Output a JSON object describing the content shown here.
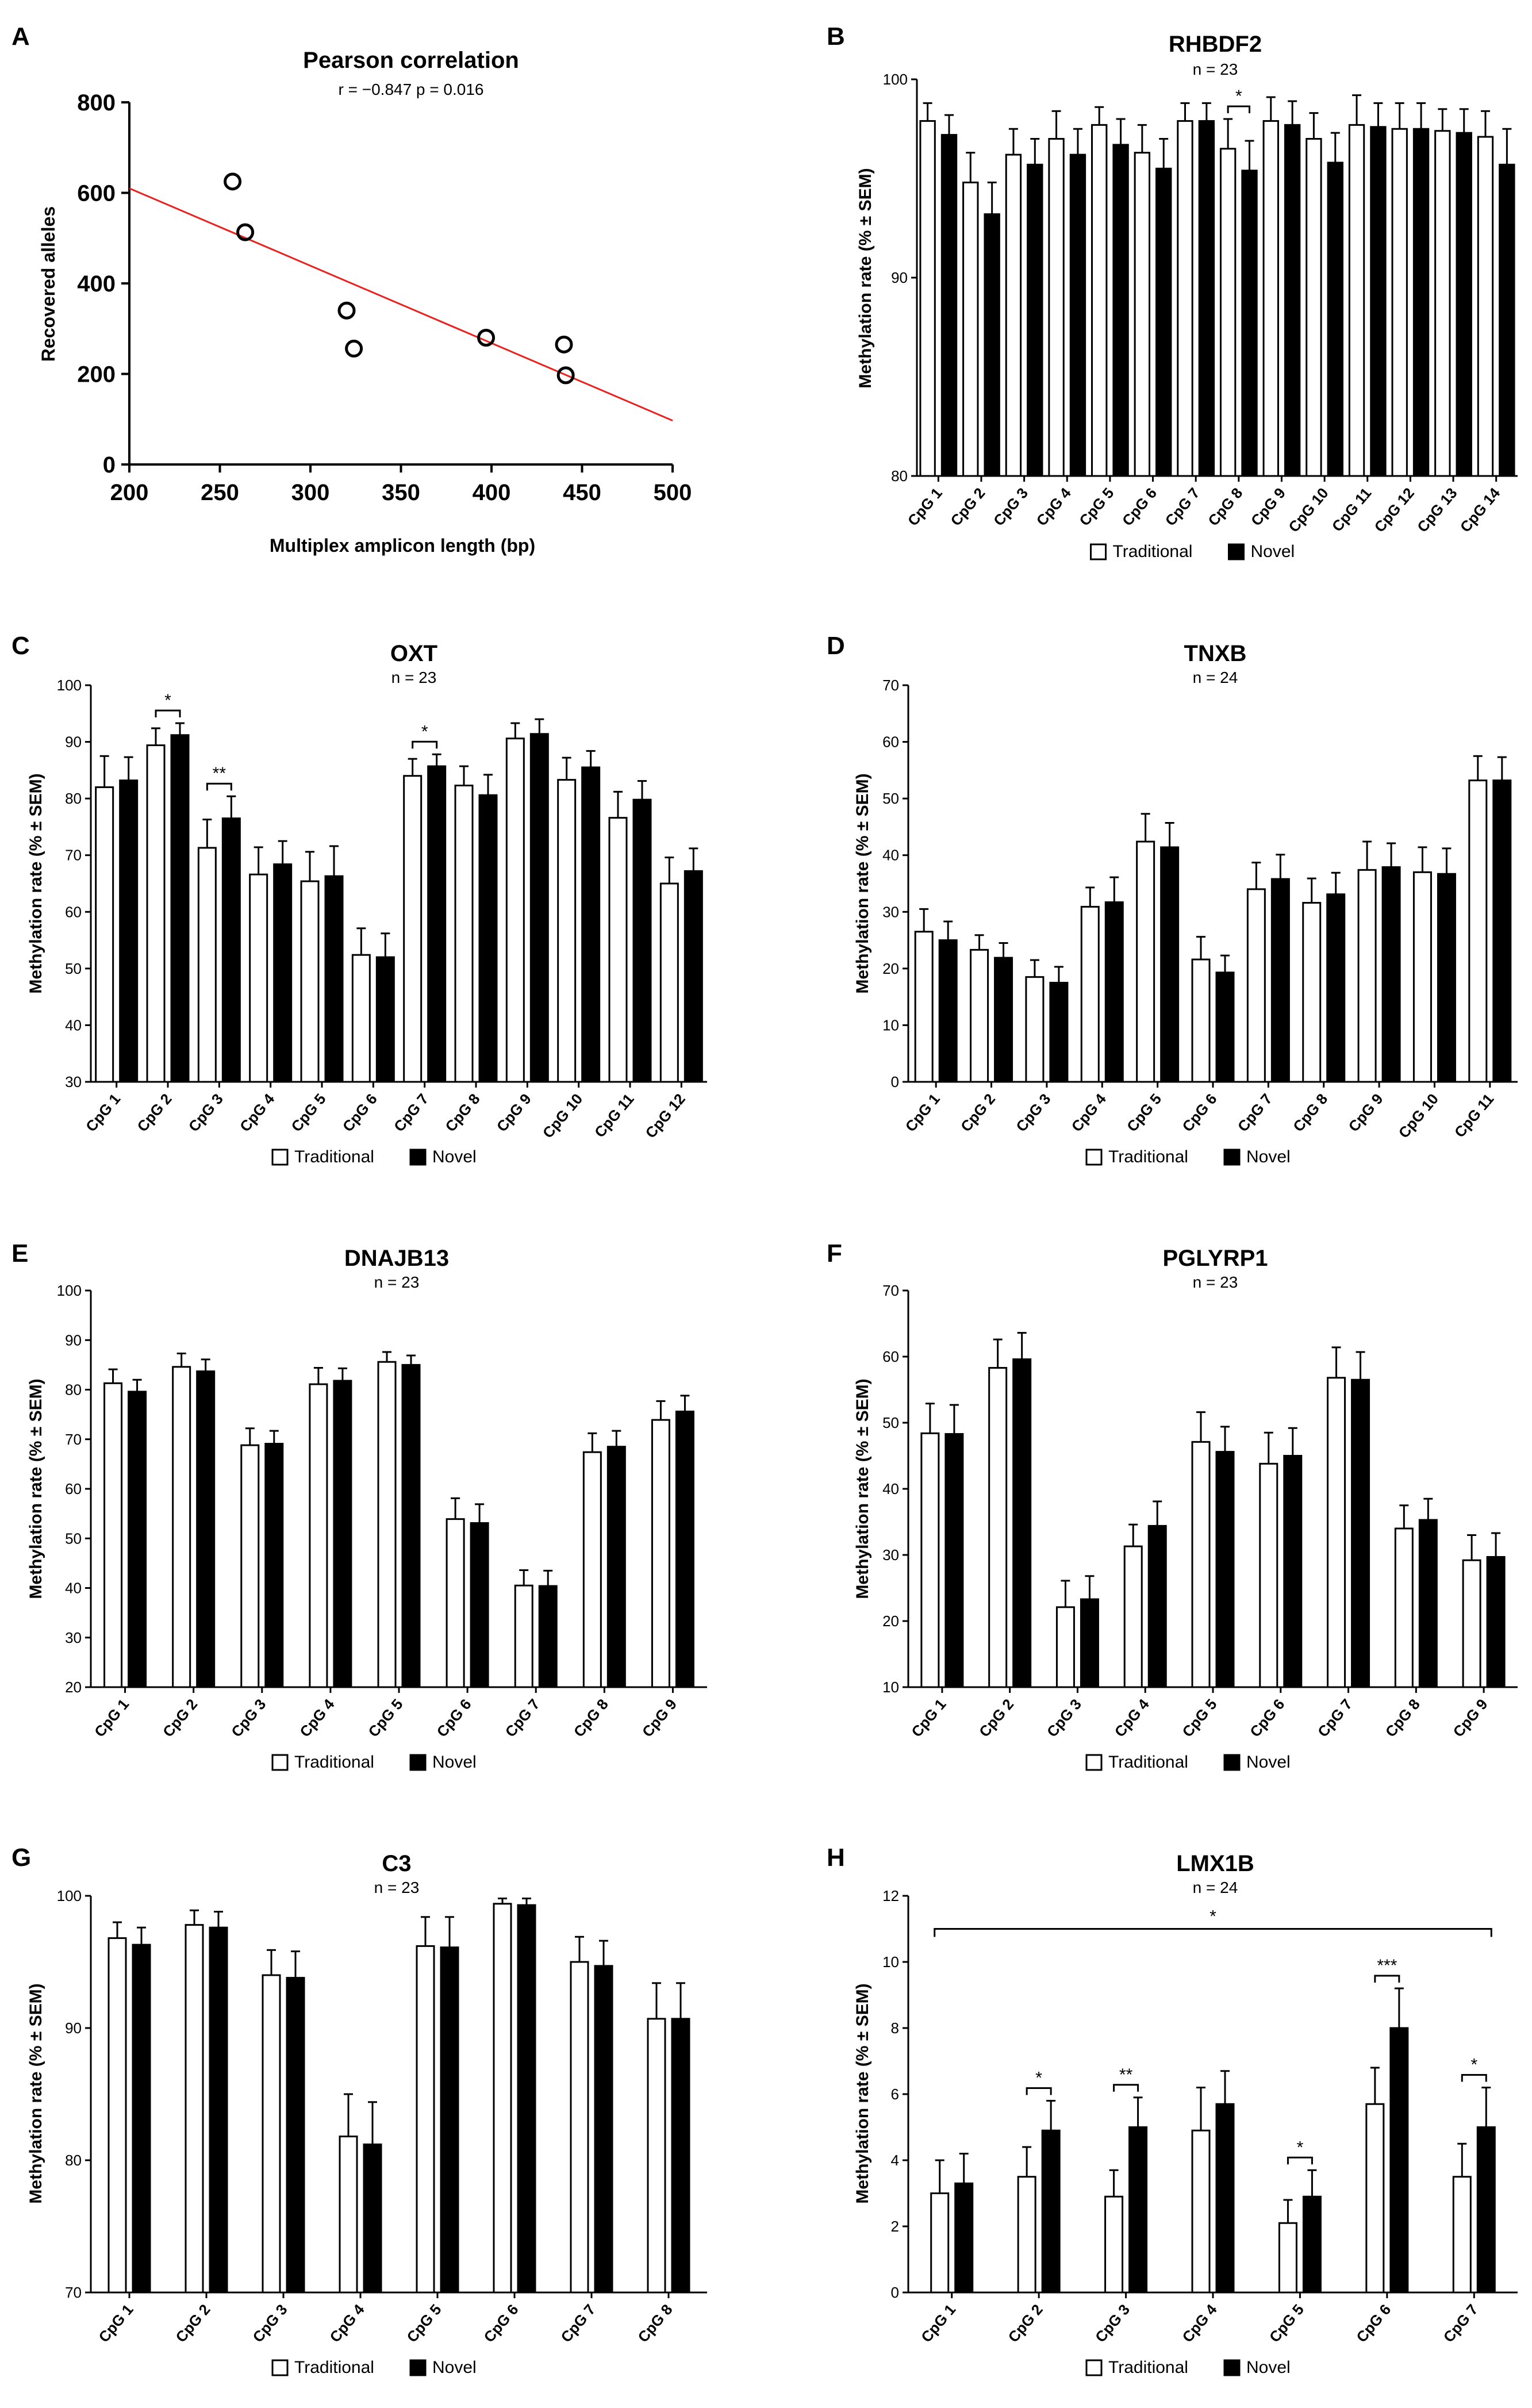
{
  "chart_data": [
    {
      "panel": "A",
      "type": "scatter",
      "title": "Pearson correlation",
      "stats": "r = −0.847  p = 0.016",
      "xlabel": "Multiplex amplicon length (bp)",
      "ylabel": "Recovered alleles",
      "xlim": [
        200,
        500
      ],
      "ylim": [
        0,
        800
      ],
      "xticks": [
        200,
        250,
        300,
        350,
        400,
        450,
        500
      ],
      "yticks": [
        0,
        200,
        400,
        600,
        800
      ],
      "points": [
        {
          "x": 257,
          "y": 625
        },
        {
          "x": 264,
          "y": 513
        },
        {
          "x": 320,
          "y": 340
        },
        {
          "x": 324,
          "y": 256
        },
        {
          "x": 397,
          "y": 280
        },
        {
          "x": 440,
          "y": 265
        },
        {
          "x": 441,
          "y": 197
        }
      ],
      "trendline": {
        "x": [
          200,
          500
        ],
        "y": [
          610,
          97
        ]
      },
      "trendline_color": "#e8231f"
    },
    {
      "panel": "B",
      "type": "bar",
      "title": "RHBDF2",
      "subtitle": "n = 23",
      "ylabel": "Methylation rate (% ± SEM)",
      "ylim": [
        80,
        100
      ],
      "yticks": [
        80,
        90,
        100
      ],
      "categories": [
        "CpG 1",
        "CpG 2",
        "CpG 3",
        "CpG 4",
        "CpG 5",
        "CpG 6",
        "CpG 7",
        "CpG 8",
        "CpG 9",
        "CpG 10",
        "CpG 11",
        "CpG 12",
        "CpG 13",
        "CpG 14"
      ],
      "series": [
        {
          "name": "Traditional",
          "values": [
            97.9,
            94.8,
            96.2,
            97.0,
            97.7,
            96.3,
            97.9,
            96.5,
            97.9,
            97.0,
            97.7,
            97.5,
            97.4,
            97.1
          ],
          "errors": [
            0.9,
            1.5,
            1.3,
            1.4,
            0.9,
            1.4,
            0.9,
            1.5,
            1.2,
            1.3,
            1.5,
            1.3,
            1.1,
            1.3
          ]
        },
        {
          "name": "Novel",
          "values": [
            97.2,
            93.2,
            95.7,
            96.2,
            96.7,
            95.5,
            97.9,
            95.4,
            97.7,
            95.8,
            97.6,
            97.5,
            97.3,
            95.7
          ],
          "errors": [
            1.0,
            1.6,
            1.3,
            1.3,
            1.3,
            1.5,
            0.9,
            1.5,
            1.2,
            1.5,
            1.2,
            1.3,
            1.2,
            1.8
          ]
        }
      ],
      "significance": [
        {
          "category": "CpG 8",
          "label": "*"
        }
      ]
    },
    {
      "panel": "C",
      "type": "bar",
      "title": "OXT",
      "subtitle": "n = 23",
      "ylabel": "Methylation rate (% ± SEM)",
      "ylim": [
        30,
        100
      ],
      "yticks": [
        30,
        40,
        50,
        60,
        70,
        80,
        90,
        100
      ],
      "categories": [
        "CpG 1",
        "CpG 2",
        "CpG 3",
        "CpG 4",
        "CpG 5",
        "CpG 6",
        "CpG 7",
        "CpG 8",
        "CpG 9",
        "CpG 10",
        "CpG 11",
        "CpG 12"
      ],
      "series": [
        {
          "name": "Traditional",
          "values": [
            82.0,
            89.4,
            71.3,
            66.6,
            65.4,
            52.4,
            84.0,
            82.3,
            90.6,
            83.3,
            76.6,
            65.0
          ],
          "errors": [
            5.5,
            3.0,
            5.0,
            4.8,
            5.2,
            4.7,
            3.0,
            3.4,
            2.7,
            3.9,
            4.6,
            4.6
          ]
        },
        {
          "name": "Novel",
          "values": [
            83.2,
            91.2,
            76.5,
            68.4,
            66.3,
            52.0,
            85.7,
            80.6,
            91.4,
            85.5,
            79.8,
            67.2
          ],
          "errors": [
            4.1,
            2.1,
            3.9,
            4.1,
            5.3,
            4.2,
            2.1,
            3.6,
            2.6,
            2.9,
            3.3,
            4.0
          ]
        }
      ],
      "significance": [
        {
          "category": "CpG 2",
          "label": "*"
        },
        {
          "category": "CpG 3",
          "label": "**"
        },
        {
          "category": "CpG 7",
          "label": "*"
        }
      ]
    },
    {
      "panel": "D",
      "type": "bar",
      "title": "TNXB",
      "subtitle": "n = 24",
      "ylabel": "Methylation rate (% ± SEM)",
      "ylim": [
        0,
        70
      ],
      "yticks": [
        0,
        10,
        20,
        30,
        40,
        50,
        60,
        70
      ],
      "categories": [
        "CpG 1",
        "CpG 2",
        "CpG 3",
        "CpG 4",
        "CpG 5",
        "CpG 6",
        "CpG 7",
        "CpG 8",
        "CpG 9",
        "CpG 10",
        "CpG 11"
      ],
      "series": [
        {
          "name": "Traditional",
          "values": [
            26.5,
            23.3,
            18.5,
            30.9,
            42.4,
            21.6,
            34.0,
            31.6,
            37.4,
            37.0,
            53.2
          ],
          "errors": [
            4.0,
            2.6,
            3.0,
            3.4,
            4.9,
            4.0,
            4.7,
            4.3,
            5.0,
            4.4,
            4.3
          ]
        },
        {
          "name": "Novel",
          "values": [
            25.0,
            21.9,
            17.5,
            31.7,
            41.4,
            19.3,
            35.8,
            33.1,
            37.9,
            36.7,
            53.2
          ],
          "errors": [
            3.3,
            2.6,
            2.8,
            4.4,
            4.3,
            3.0,
            4.3,
            3.8,
            4.2,
            4.5,
            4.1
          ]
        }
      ],
      "significance": []
    },
    {
      "panel": "E",
      "type": "bar",
      "title": "DNAJB13",
      "subtitle": "n = 23",
      "ylabel": "Methylation rate (% ± SEM)",
      "ylim": [
        20,
        100
      ],
      "yticks": [
        20,
        30,
        40,
        50,
        60,
        70,
        80,
        90,
        100
      ],
      "categories": [
        "CpG 1",
        "CpG 2",
        "CpG 3",
        "CpG 4",
        "CpG 5",
        "CpG 6",
        "CpG 7",
        "CpG 8",
        "CpG 9"
      ],
      "series": [
        {
          "name": "Traditional",
          "values": [
            81.3,
            84.6,
            68.8,
            81.1,
            85.6,
            53.9,
            40.5,
            67.4,
            73.9
          ],
          "errors": [
            2.8,
            2.7,
            3.4,
            3.3,
            2.0,
            4.2,
            3.1,
            3.8,
            3.8
          ]
        },
        {
          "name": "Novel",
          "values": [
            79.6,
            83.7,
            69.1,
            81.8,
            85.0,
            53.1,
            40.4,
            68.5,
            75.6
          ],
          "errors": [
            2.4,
            2.4,
            2.6,
            2.5,
            1.9,
            3.8,
            3.1,
            3.2,
            3.2
          ]
        }
      ],
      "significance": []
    },
    {
      "panel": "F",
      "type": "bar",
      "title": "PGLYRP1",
      "subtitle": "n = 23",
      "ylabel": "Methylation rate (% ± SEM)",
      "ylim": [
        10,
        70
      ],
      "yticks": [
        10,
        20,
        30,
        40,
        50,
        60,
        70
      ],
      "categories": [
        "CpG 1",
        "CpG 2",
        "CpG 3",
        "CpG 4",
        "CpG 5",
        "CpG 6",
        "CpG 7",
        "CpG 8",
        "CpG 9"
      ],
      "series": [
        {
          "name": "Traditional",
          "values": [
            48.4,
            58.3,
            22.1,
            31.3,
            47.1,
            43.8,
            56.8,
            34.0,
            29.2
          ],
          "errors": [
            4.5,
            4.3,
            4.0,
            3.3,
            4.5,
            4.7,
            4.6,
            3.5,
            3.8
          ]
        },
        {
          "name": "Novel",
          "values": [
            48.3,
            59.6,
            23.3,
            34.4,
            45.6,
            45.0,
            56.5,
            35.3,
            29.7
          ],
          "errors": [
            4.4,
            4.0,
            3.5,
            3.7,
            3.8,
            4.2,
            4.2,
            3.2,
            3.6
          ]
        }
      ],
      "significance": []
    },
    {
      "panel": "G",
      "type": "bar",
      "title": "C3",
      "subtitle": "n = 23",
      "ylabel": "Methylation rate (% ± SEM)",
      "ylim": [
        70,
        100
      ],
      "yticks": [
        70,
        80,
        90,
        100
      ],
      "categories": [
        "CpG 1",
        "CpG 2",
        "CpG 3",
        "CpG 4",
        "CpG 5",
        "CpG 6",
        "CpG 7",
        "CpG 8"
      ],
      "series": [
        {
          "name": "Traditional",
          "values": [
            96.8,
            97.8,
            94.0,
            81.8,
            96.2,
            99.4,
            95.0,
            90.7
          ],
          "errors": [
            1.2,
            1.1,
            1.9,
            3.2,
            2.2,
            0.4,
            1.9,
            2.7
          ]
        },
        {
          "name": "Novel",
          "values": [
            96.3,
            97.6,
            93.8,
            81.2,
            96.1,
            99.3,
            94.7,
            90.7
          ],
          "errors": [
            1.3,
            1.2,
            2.0,
            3.2,
            2.3,
            0.5,
            1.9,
            2.7
          ]
        }
      ],
      "significance": []
    },
    {
      "panel": "H",
      "type": "bar",
      "title": "LMX1B",
      "subtitle": "n = 24",
      "ylabel": "Methylation rate (% ± SEM)",
      "ylim": [
        0,
        12
      ],
      "yticks": [
        0,
        2,
        4,
        6,
        8,
        10,
        12
      ],
      "categories": [
        "CpG 1",
        "CpG 2",
        "CpG 3",
        "CpG 4",
        "CpG 5",
        "CpG 6",
        "CpG 7"
      ],
      "series": [
        {
          "name": "Traditional",
          "values": [
            3.0,
            3.5,
            2.9,
            4.9,
            2.1,
            5.7,
            3.5
          ],
          "errors": [
            1.0,
            0.9,
            0.8,
            1.3,
            0.7,
            1.1,
            1.0
          ]
        },
        {
          "name": "Novel",
          "values": [
            3.3,
            4.9,
            5.0,
            5.7,
            2.9,
            8.0,
            5.0
          ],
          "errors": [
            0.9,
            0.9,
            0.9,
            1.0,
            0.8,
            1.2,
            1.2
          ]
        }
      ],
      "significance": [
        {
          "category": "CpG 2",
          "label": "*"
        },
        {
          "category": "CpG 3",
          "label": "**"
        },
        {
          "category": "CpG 5",
          "label": "*"
        },
        {
          "category": "CpG 6",
          "label": "***"
        },
        {
          "category": "CpG 7",
          "label": "*"
        }
      ],
      "overall_significance": "*"
    }
  ]
}
